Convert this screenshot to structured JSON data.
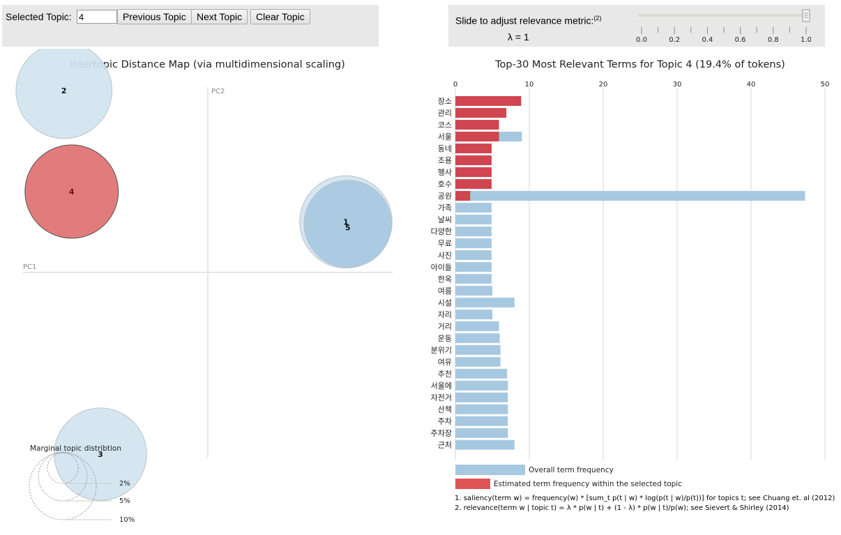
{
  "controls": {
    "selected_topic_label": "Selected Topic:",
    "selected_topic_value": "4",
    "prev_label": "Previous Topic",
    "next_label": "Next Topic",
    "clear_label": "Clear Topic"
  },
  "lambda": {
    "label": "Slide to adjust relevance metric:",
    "label_sup": "(2)",
    "value_text": "λ = 1",
    "value": 1.0,
    "ticks": [
      "0.0",
      "0.2",
      "0.4",
      "0.6",
      "0.8",
      "1.0"
    ]
  },
  "colors": {
    "topic_blue": "#a6c8e0",
    "topic_light": "#d2e3ef",
    "selected_red": "#e27c7c",
    "bar_red": "#d0454f",
    "bar_blue": "#a6c8e0"
  },
  "chart_data": [
    {
      "type": "scatter",
      "title": "Intertopic Distance Map (via multidimensional scaling)",
      "xlabel": "PC1",
      "ylabel": "PC2",
      "topics": [
        {
          "id": "1",
          "pc1": 0.72,
          "pc2": 0.25,
          "size_pct": 19.0,
          "selected": false
        },
        {
          "id": "2",
          "pc1": -0.75,
          "pc2": 0.9,
          "size_pct": 20.5,
          "selected": false
        },
        {
          "id": "3",
          "pc1": -0.56,
          "pc2": -0.9,
          "size_pct": 19.0,
          "selected": false
        },
        {
          "id": "4",
          "pc1": -0.71,
          "pc2": 0.4,
          "size_pct": 19.4,
          "selected": true
        },
        {
          "id": "5",
          "pc1": 0.73,
          "pc2": 0.24,
          "size_pct": 17.0,
          "selected": false
        }
      ],
      "legend": {
        "title": "Marginal topic distribtion",
        "entries": [
          "2%",
          "5%",
          "10%"
        ]
      }
    },
    {
      "type": "bar",
      "title": "Top-30 Most Relevant Terms for Topic 4 (19.4% of tokens)",
      "xlim": [
        0,
        50
      ],
      "xticks": [
        "0",
        "10",
        "20",
        "30",
        "40",
        "50"
      ],
      "categories": [
        "장소",
        "관리",
        "코스",
        "서울",
        "동네",
        "조용",
        "행사",
        "호수",
        "공원",
        "가족",
        "날씨",
        "다양한",
        "무료",
        "사진",
        "아이들",
        "한옥",
        "여름",
        "시설",
        "자리",
        "거리",
        "운동",
        "분위기",
        "여유",
        "추천",
        "서울에",
        "자전거",
        "산책",
        "주차",
        "주차장",
        "근처"
      ],
      "series": [
        {
          "name": "Overall term frequency",
          "values": [
            8.9,
            6.9,
            5.9,
            9.0,
            4.9,
            4.9,
            4.9,
            4.9,
            47.3,
            4.9,
            4.9,
            4.9,
            4.9,
            4.9,
            4.9,
            4.9,
            5.0,
            8.0,
            5.0,
            5.9,
            6.0,
            6.1,
            6.1,
            7.0,
            7.1,
            7.1,
            7.1,
            7.1,
            7.1,
            8.0
          ]
        },
        {
          "name": "Estimated term frequency within the selected topic",
          "values": [
            8.9,
            6.9,
            5.9,
            5.9,
            4.9,
            4.9,
            4.9,
            4.9,
            2.0,
            0,
            0,
            0,
            0,
            0,
            0,
            0,
            0,
            0,
            0,
            0,
            0,
            0,
            0,
            0,
            0,
            0,
            0,
            0,
            0,
            0
          ]
        }
      ],
      "legend": [
        "Overall term frequency",
        "Estimated term frequency within the selected topic"
      ]
    }
  ],
  "footnotes": [
    "1. saliency(term w) = frequency(w) * [sum_t p(t | w) * log(p(t | w)/p(t))] for topics t; see Chuang et. al (2012)",
    "2. relevance(term w | topic t) = λ * p(w | t) + (1 - λ) * p(w | t)/p(w); see Sievert & Shirley (2014)"
  ]
}
